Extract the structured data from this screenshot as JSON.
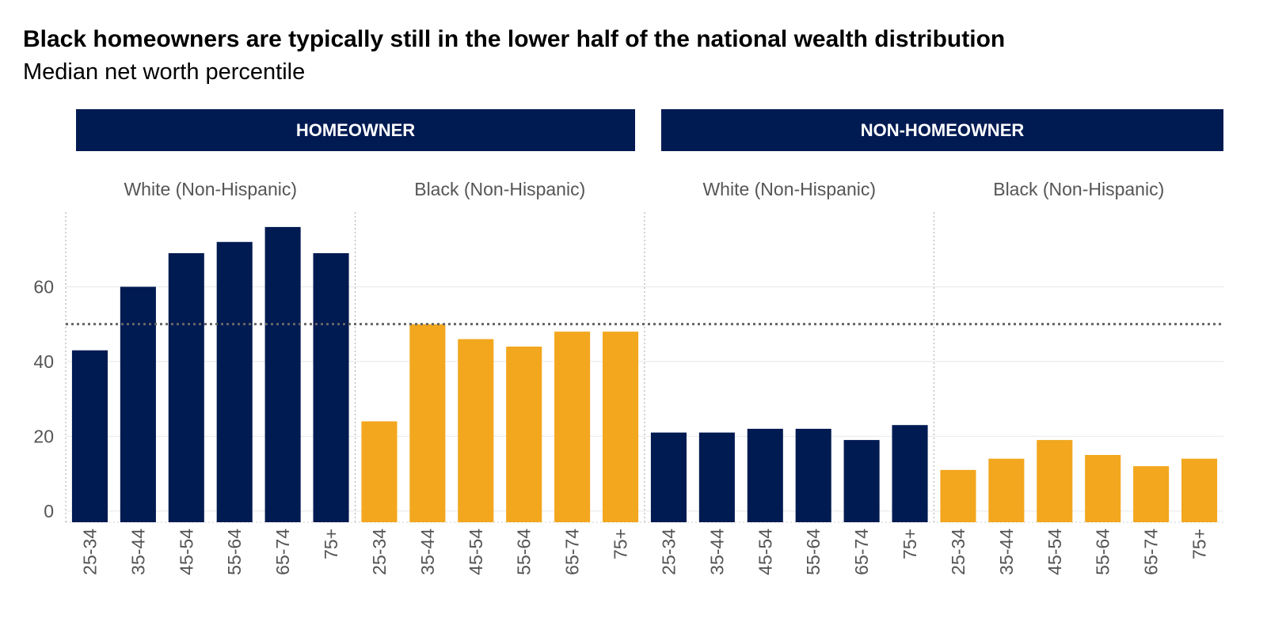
{
  "chart_data": {
    "type": "bar",
    "title": "Black homeowners are typically still in the lower half of the national wealth distribution",
    "subtitle": "Median net worth percentile",
    "xlabel": "",
    "ylabel": "",
    "ylim": [
      -3,
      80
    ],
    "yticks": [
      0,
      20,
      40,
      60
    ],
    "reference_line": {
      "y": 50,
      "style": "dotted"
    },
    "categories": [
      "25-34",
      "35-44",
      "45-54",
      "55-64",
      "65-74",
      "75+"
    ],
    "colors": {
      "White (Non-Hispanic)": "#001a52",
      "Black (Non-Hispanic)": "#f2a71e",
      "facet_header": "#001a52"
    },
    "facets": [
      {
        "label": "HOMEOWNER",
        "groups": [
          {
            "name": "White (Non-Hispanic)",
            "values": [
              43,
              60,
              69,
              72,
              76,
              69
            ]
          },
          {
            "name": "Black (Non-Hispanic)",
            "values": [
              24,
              50,
              46,
              44,
              48,
              48
            ]
          }
        ]
      },
      {
        "label": "NON-HOMEOWNER",
        "groups": [
          {
            "name": "White (Non-Hispanic)",
            "values": [
              21,
              21,
              22,
              22,
              19,
              23
            ]
          },
          {
            "name": "Black (Non-Hispanic)",
            "values": [
              11,
              14,
              19,
              15,
              12,
              14
            ]
          }
        ]
      }
    ],
    "grid": true
  }
}
